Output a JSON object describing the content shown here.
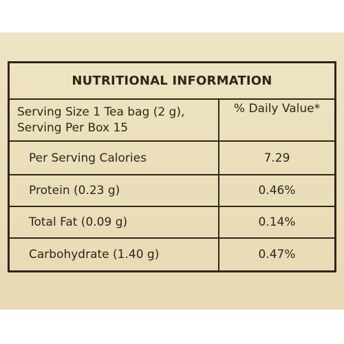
{
  "table": {
    "title": "NUTRITIONAL INFORMATION",
    "serving_line1": "Serving Size 1 Tea bag (2 g),",
    "serving_line2": "Serving Per Box 15",
    "daily_value_header": "% Daily Value*",
    "rows": [
      {
        "label": "Per Serving Calories",
        "value": "7.29"
      },
      {
        "label": "Protein (0.23 g)",
        "value": "0.46%"
      },
      {
        "label": "Total Fat (0.09 g)",
        "value": "0.14%"
      },
      {
        "label": "Carbohydrate (1.40 g)",
        "value": "0.47%"
      }
    ]
  }
}
